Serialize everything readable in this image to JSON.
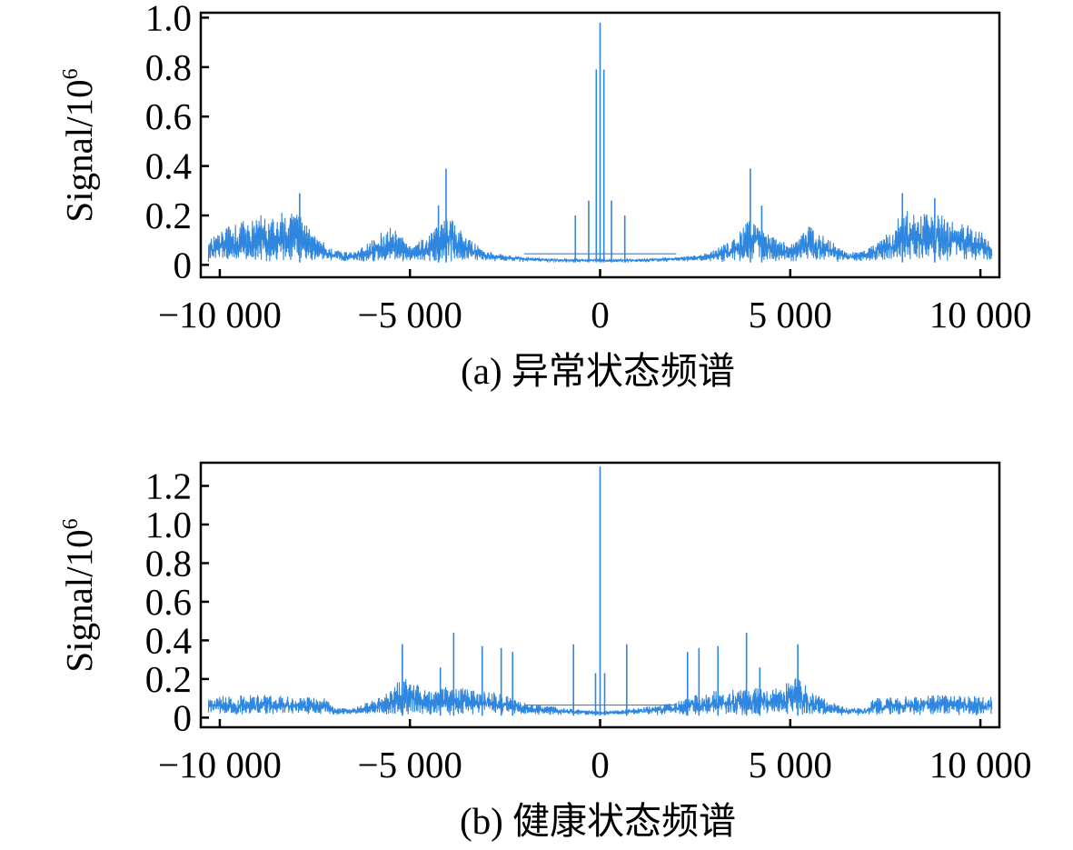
{
  "chart_data": [
    {
      "type": "line",
      "panel": "a",
      "caption": "(a) 异常状态频谱",
      "ylabel_base": "Signal/10",
      "ylabel_exp": "6",
      "xlim": [
        -10500,
        10500
      ],
      "ylim": [
        -0.05,
        1.02
      ],
      "xticks": [
        -10000,
        -5000,
        0,
        5000,
        10000
      ],
      "xtick_labels": [
        "−10 000",
        "−5 000",
        "0",
        "5 000",
        "10 000"
      ],
      "yticks": [
        0,
        0.2,
        0.4,
        0.6,
        0.8,
        1.0
      ],
      "ytick_labels": [
        "0",
        "0.2",
        "0.4",
        "0.6",
        "0.8",
        "1.0"
      ],
      "series_color": "#2e86de",
      "envelope": [
        {
          "x": -10300,
          "y": 0.1
        },
        {
          "x": -9800,
          "y": 0.16
        },
        {
          "x": -9000,
          "y": 0.2
        },
        {
          "x": -8000,
          "y": 0.22
        },
        {
          "x": -7500,
          "y": 0.12
        },
        {
          "x": -7000,
          "y": 0.06
        },
        {
          "x": -6500,
          "y": 0.05
        },
        {
          "x": -5500,
          "y": 0.16
        },
        {
          "x": -5000,
          "y": 0.08
        },
        {
          "x": -4500,
          "y": 0.12
        },
        {
          "x": -4000,
          "y": 0.2
        },
        {
          "x": -3500,
          "y": 0.11
        },
        {
          "x": -3000,
          "y": 0.06
        },
        {
          "x": -2500,
          "y": 0.04
        },
        {
          "x": -2000,
          "y": 0.03
        },
        {
          "x": -1000,
          "y": 0.02
        },
        {
          "x": 0,
          "y": 0.02
        },
        {
          "x": 1000,
          "y": 0.02
        },
        {
          "x": 2000,
          "y": 0.03
        },
        {
          "x": 2500,
          "y": 0.04
        },
        {
          "x": 3000,
          "y": 0.06
        },
        {
          "x": 3500,
          "y": 0.11
        },
        {
          "x": 4000,
          "y": 0.2
        },
        {
          "x": 4500,
          "y": 0.12
        },
        {
          "x": 5000,
          "y": 0.08
        },
        {
          "x": 5500,
          "y": 0.16
        },
        {
          "x": 6500,
          "y": 0.05
        },
        {
          "x": 7000,
          "y": 0.06
        },
        {
          "x": 7500,
          "y": 0.12
        },
        {
          "x": 8000,
          "y": 0.22
        },
        {
          "x": 9000,
          "y": 0.2
        },
        {
          "x": 9800,
          "y": 0.16
        },
        {
          "x": 10300,
          "y": 0.1
        }
      ],
      "spikes": [
        {
          "x": 0,
          "y": 0.98
        },
        {
          "x": -100,
          "y": 0.79
        },
        {
          "x": 100,
          "y": 0.79
        },
        {
          "x": -4050,
          "y": 0.39
        },
        {
          "x": 3950,
          "y": 0.39
        },
        {
          "x": -7900,
          "y": 0.29
        },
        {
          "x": 7950,
          "y": 0.29
        },
        {
          "x": -300,
          "y": 0.26
        },
        {
          "x": 300,
          "y": 0.26
        },
        {
          "x": -650,
          "y": 0.2
        },
        {
          "x": 650,
          "y": 0.2
        },
        {
          "x": 8800,
          "y": 0.27
        },
        {
          "x": -4250,
          "y": 0.24
        },
        {
          "x": 4250,
          "y": 0.24
        }
      ]
    },
    {
      "type": "line",
      "panel": "b",
      "caption": "(b) 健康状态频谱",
      "ylabel_base": "Signal/10",
      "ylabel_exp": "6",
      "xlim": [
        -10500,
        10500
      ],
      "ylim": [
        -0.05,
        1.32
      ],
      "xticks": [
        -10000,
        -5000,
        0,
        5000,
        10000
      ],
      "xtick_labels": [
        "−10 000",
        "−5 000",
        "0",
        "5 000",
        "10 000"
      ],
      "yticks": [
        0,
        0.2,
        0.4,
        0.6,
        0.8,
        1.0,
        1.2
      ],
      "ytick_labels": [
        "0",
        "0.2",
        "0.4",
        "0.6",
        "0.8",
        "1.0",
        "1.2"
      ],
      "series_color": "#2e86de",
      "envelope": [
        {
          "x": -10300,
          "y": 0.11
        },
        {
          "x": -9000,
          "y": 0.12
        },
        {
          "x": -8000,
          "y": 0.11
        },
        {
          "x": -7200,
          "y": 0.1
        },
        {
          "x": -7000,
          "y": 0.05
        },
        {
          "x": -6500,
          "y": 0.05
        },
        {
          "x": -6000,
          "y": 0.09
        },
        {
          "x": -5500,
          "y": 0.14
        },
        {
          "x": -5200,
          "y": 0.22
        },
        {
          "x": -4500,
          "y": 0.14
        },
        {
          "x": -4000,
          "y": 0.16
        },
        {
          "x": -3000,
          "y": 0.14
        },
        {
          "x": -2500,
          "y": 0.12
        },
        {
          "x": -2000,
          "y": 0.08
        },
        {
          "x": -1000,
          "y": 0.05
        },
        {
          "x": 0,
          "y": 0.03
        },
        {
          "x": 1000,
          "y": 0.05
        },
        {
          "x": 2000,
          "y": 0.08
        },
        {
          "x": 2500,
          "y": 0.12
        },
        {
          "x": 3000,
          "y": 0.14
        },
        {
          "x": 4000,
          "y": 0.16
        },
        {
          "x": 4500,
          "y": 0.14
        },
        {
          "x": 5200,
          "y": 0.22
        },
        {
          "x": 5500,
          "y": 0.14
        },
        {
          "x": 6000,
          "y": 0.09
        },
        {
          "x": 6500,
          "y": 0.05
        },
        {
          "x": 7000,
          "y": 0.05
        },
        {
          "x": 7200,
          "y": 0.1
        },
        {
          "x": 8000,
          "y": 0.11
        },
        {
          "x": 9000,
          "y": 0.12
        },
        {
          "x": 10300,
          "y": 0.11
        }
      ],
      "spikes": [
        {
          "x": 0,
          "y": 1.3
        },
        {
          "x": -3850,
          "y": 0.44
        },
        {
          "x": 3850,
          "y": 0.44
        },
        {
          "x": -5200,
          "y": 0.38
        },
        {
          "x": 5200,
          "y": 0.38
        },
        {
          "x": -700,
          "y": 0.38
        },
        {
          "x": 700,
          "y": 0.38
        },
        {
          "x": -2600,
          "y": 0.36
        },
        {
          "x": 2600,
          "y": 0.36
        },
        {
          "x": -3100,
          "y": 0.37
        },
        {
          "x": 3100,
          "y": 0.37
        },
        {
          "x": -2300,
          "y": 0.34
        },
        {
          "x": 2300,
          "y": 0.34
        },
        {
          "x": -4200,
          "y": 0.26
        },
        {
          "x": 4200,
          "y": 0.26
        },
        {
          "x": -120,
          "y": 0.23
        },
        {
          "x": 120,
          "y": 0.23
        }
      ]
    }
  ]
}
